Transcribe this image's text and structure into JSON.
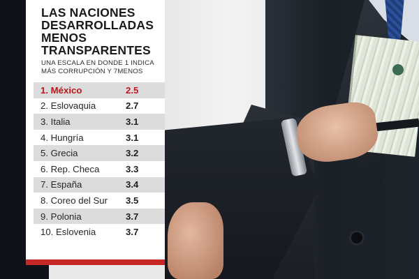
{
  "title": "LAS NACIONES DESARROLLADAS MENOS TRANSPARENTES",
  "subtitle": "UNA ESCALA EN DONDE 1 INDICA MÁS CORRUPCIÓN Y 7MENOS",
  "colors": {
    "highlight": "#c0161b",
    "accent_bar": "#c62828",
    "row_shade": "#dcdcdc"
  },
  "chart_data": {
    "type": "table",
    "title": "LAS NACIONES DESARROLLADAS MENOS TRANSPARENTES",
    "subtitle": "UNA ESCALA EN DONDE 1 INDICA MÁS CORRUPCIÓN Y 7MENOS",
    "rows": [
      {
        "label": "1. México",
        "value": 2.5,
        "display": "2.5",
        "highlight": true
      },
      {
        "label": "2. Eslovaquia",
        "value": 2.7,
        "display": "2.7"
      },
      {
        "label": "3. Italia",
        "value": 3.1,
        "display": "3.1"
      },
      {
        "label": "4. Hungría",
        "value": 3.1,
        "display": "3.1"
      },
      {
        "label": "5. Grecia",
        "value": 3.2,
        "display": "3.2"
      },
      {
        "label": "6. Rep. Checa",
        "value": 3.3,
        "display": "3.3"
      },
      {
        "label": "7. España",
        "value": 3.4,
        "display": "3.4"
      },
      {
        "label": "8. Coreo del Sur",
        "value": 3.5,
        "display": "3.5"
      },
      {
        "label": "9. Polonia",
        "value": 3.7,
        "display": "3.7"
      },
      {
        "label": "10. Eslovenia",
        "value": 3.7,
        "display": "3.7"
      }
    ]
  }
}
